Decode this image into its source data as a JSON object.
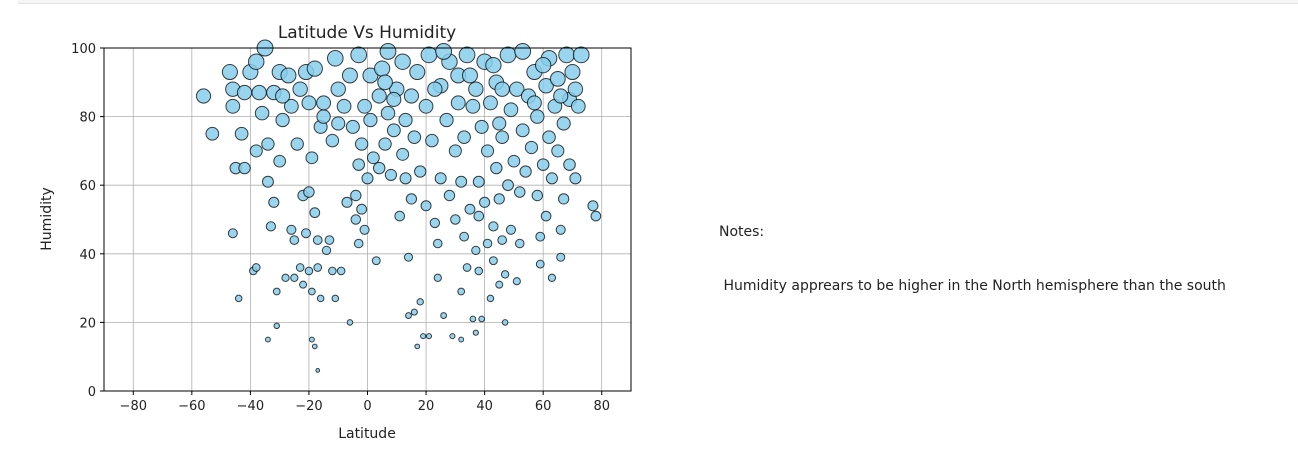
{
  "chart_data": {
    "type": "scatter",
    "title": "Latitude Vs Humidity",
    "xlabel": "Latitude",
    "ylabel": "Humidity",
    "xlim": [
      -90,
      90
    ],
    "ylim": [
      0,
      100
    ],
    "xticks": [
      -80,
      -60,
      -40,
      -20,
      0,
      20,
      40,
      60,
      80
    ],
    "yticks": [
      0,
      20,
      40,
      60,
      80,
      100
    ],
    "grid": true,
    "marker_color": "#87ceeb",
    "marker_edge_color": "#000000",
    "points": [
      {
        "x": -56,
        "y": 86
      },
      {
        "x": -53,
        "y": 75
      },
      {
        "x": -47,
        "y": 93
      },
      {
        "x": -46,
        "y": 88
      },
      {
        "x": -46,
        "y": 83
      },
      {
        "x": -45,
        "y": 65
      },
      {
        "x": -46,
        "y": 46
      },
      {
        "x": -44,
        "y": 27
      },
      {
        "x": -43,
        "y": 75
      },
      {
        "x": -42,
        "y": 65
      },
      {
        "x": -42,
        "y": 87
      },
      {
        "x": -40,
        "y": 93
      },
      {
        "x": -39,
        "y": 35
      },
      {
        "x": -38,
        "y": 36
      },
      {
        "x": -38,
        "y": 70
      },
      {
        "x": -37,
        "y": 87
      },
      {
        "x": -36,
        "y": 81
      },
      {
        "x": -35,
        "y": 100
      },
      {
        "x": -34,
        "y": 72
      },
      {
        "x": -34,
        "y": 61
      },
      {
        "x": -33,
        "y": 48
      },
      {
        "x": -34,
        "y": 15
      },
      {
        "x": -32,
        "y": 55
      },
      {
        "x": -32,
        "y": 87
      },
      {
        "x": -31,
        "y": 19
      },
      {
        "x": -31,
        "y": 29
      },
      {
        "x": -30,
        "y": 67
      },
      {
        "x": -30,
        "y": 93
      },
      {
        "x": -29,
        "y": 79
      },
      {
        "x": -28,
        "y": 33
      },
      {
        "x": -27,
        "y": 92
      },
      {
        "x": -26,
        "y": 83
      },
      {
        "x": -26,
        "y": 47
      },
      {
        "x": -25,
        "y": 44
      },
      {
        "x": -25,
        "y": 33
      },
      {
        "x": -24,
        "y": 72
      },
      {
        "x": -23,
        "y": 88
      },
      {
        "x": -23,
        "y": 36
      },
      {
        "x": -22,
        "y": 31
      },
      {
        "x": -22,
        "y": 57
      },
      {
        "x": -21,
        "y": 46
      },
      {
        "x": -21,
        "y": 93
      },
      {
        "x": -20,
        "y": 35
      },
      {
        "x": -20,
        "y": 58
      },
      {
        "x": -20,
        "y": 84
      },
      {
        "x": -19,
        "y": 29
      },
      {
        "x": -19,
        "y": 15
      },
      {
        "x": -19,
        "y": 68
      },
      {
        "x": -18,
        "y": 94
      },
      {
        "x": -18,
        "y": 13
      },
      {
        "x": -18,
        "y": 52
      },
      {
        "x": -17,
        "y": 44
      },
      {
        "x": -17,
        "y": 6
      },
      {
        "x": -17,
        "y": 36
      },
      {
        "x": -16,
        "y": 27
      },
      {
        "x": -16,
        "y": 77
      },
      {
        "x": -15,
        "y": 80
      },
      {
        "x": -14,
        "y": 41
      },
      {
        "x": -13,
        "y": 44
      },
      {
        "x": -12,
        "y": 35
      },
      {
        "x": -12,
        "y": 73
      },
      {
        "x": -11,
        "y": 27
      },
      {
        "x": -10,
        "y": 78
      },
      {
        "x": -10,
        "y": 88
      },
      {
        "x": -9,
        "y": 35
      },
      {
        "x": -8,
        "y": 83
      },
      {
        "x": -7,
        "y": 55
      },
      {
        "x": -6,
        "y": 20
      },
      {
        "x": -6,
        "y": 92
      },
      {
        "x": -5,
        "y": 77
      },
      {
        "x": -4,
        "y": 50
      },
      {
        "x": -4,
        "y": 57
      },
      {
        "x": -3,
        "y": 66
      },
      {
        "x": -3,
        "y": 43
      },
      {
        "x": -3,
        "y": 98
      },
      {
        "x": -2,
        "y": 53
      },
      {
        "x": -2,
        "y": 72
      },
      {
        "x": -1,
        "y": 47
      },
      {
        "x": -1,
        "y": 83
      },
      {
        "x": 0,
        "y": 62
      },
      {
        "x": 1,
        "y": 79
      },
      {
        "x": 1,
        "y": 92
      },
      {
        "x": 2,
        "y": 68
      },
      {
        "x": 3,
        "y": 38
      },
      {
        "x": 4,
        "y": 65
      },
      {
        "x": 4,
        "y": 86
      },
      {
        "x": 5,
        "y": 94
      },
      {
        "x": 6,
        "y": 72
      },
      {
        "x": 7,
        "y": 99
      },
      {
        "x": 7,
        "y": 81
      },
      {
        "x": 8,
        "y": 63
      },
      {
        "x": 9,
        "y": 76
      },
      {
        "x": 10,
        "y": 88
      },
      {
        "x": 11,
        "y": 51
      },
      {
        "x": 12,
        "y": 69
      },
      {
        "x": 12,
        "y": 96
      },
      {
        "x": 13,
        "y": 62
      },
      {
        "x": 13,
        "y": 79
      },
      {
        "x": 14,
        "y": 22
      },
      {
        "x": 14,
        "y": 39
      },
      {
        "x": 15,
        "y": 86
      },
      {
        "x": 15,
        "y": 56
      },
      {
        "x": 16,
        "y": 74
      },
      {
        "x": 16,
        "y": 23
      },
      {
        "x": 17,
        "y": 93
      },
      {
        "x": 17,
        "y": 13
      },
      {
        "x": 18,
        "y": 64
      },
      {
        "x": 18,
        "y": 26
      },
      {
        "x": 19,
        "y": 16
      },
      {
        "x": 20,
        "y": 83
      },
      {
        "x": 20,
        "y": 54
      },
      {
        "x": 21,
        "y": 16
      },
      {
        "x": 21,
        "y": 98
      },
      {
        "x": 22,
        "y": 73
      },
      {
        "x": 23,
        "y": 49
      },
      {
        "x": 24,
        "y": 33
      },
      {
        "x": 24,
        "y": 43
      },
      {
        "x": 25,
        "y": 89
      },
      {
        "x": 25,
        "y": 62
      },
      {
        "x": 26,
        "y": 22
      },
      {
        "x": 27,
        "y": 79
      },
      {
        "x": 28,
        "y": 96
      },
      {
        "x": 28,
        "y": 57
      },
      {
        "x": 29,
        "y": 16
      },
      {
        "x": 30,
        "y": 70
      },
      {
        "x": 30,
        "y": 50
      },
      {
        "x": 31,
        "y": 92
      },
      {
        "x": 31,
        "y": 84
      },
      {
        "x": 32,
        "y": 61
      },
      {
        "x": 32,
        "y": 15
      },
      {
        "x": 32,
        "y": 29
      },
      {
        "x": 33,
        "y": 45
      },
      {
        "x": 33,
        "y": 74
      },
      {
        "x": 34,
        "y": 98
      },
      {
        "x": 34,
        "y": 36
      },
      {
        "x": 35,
        "y": 53
      },
      {
        "x": 36,
        "y": 83
      },
      {
        "x": 36,
        "y": 21
      },
      {
        "x": 37,
        "y": 88
      },
      {
        "x": 37,
        "y": 17
      },
      {
        "x": 37,
        "y": 41
      },
      {
        "x": 38,
        "y": 61
      },
      {
        "x": 38,
        "y": 35
      },
      {
        "x": 39,
        "y": 77
      },
      {
        "x": 39,
        "y": 21
      },
      {
        "x": 40,
        "y": 96
      },
      {
        "x": 40,
        "y": 55
      },
      {
        "x": 41,
        "y": 43
      },
      {
        "x": 41,
        "y": 70
      },
      {
        "x": 42,
        "y": 27
      },
      {
        "x": 42,
        "y": 84
      },
      {
        "x": 43,
        "y": 48
      },
      {
        "x": 43,
        "y": 38
      },
      {
        "x": 44,
        "y": 65
      },
      {
        "x": 44,
        "y": 90
      },
      {
        "x": 45,
        "y": 56
      },
      {
        "x": 45,
        "y": 31
      },
      {
        "x": 46,
        "y": 74
      },
      {
        "x": 46,
        "y": 44
      },
      {
        "x": 47,
        "y": 34
      },
      {
        "x": 47,
        "y": 20
      },
      {
        "x": 48,
        "y": 60
      },
      {
        "x": 48,
        "y": 98
      },
      {
        "x": 49,
        "y": 82
      },
      {
        "x": 49,
        "y": 47
      },
      {
        "x": 50,
        "y": 67
      },
      {
        "x": 51,
        "y": 32
      },
      {
        "x": 51,
        "y": 88
      },
      {
        "x": 52,
        "y": 43
      },
      {
        "x": 52,
        "y": 58
      },
      {
        "x": 53,
        "y": 76
      },
      {
        "x": 53,
        "y": 99
      },
      {
        "x": 54,
        "y": 64
      },
      {
        "x": 55,
        "y": 86
      },
      {
        "x": 56,
        "y": 71
      },
      {
        "x": 57,
        "y": 93
      },
      {
        "x": 58,
        "y": 57
      },
      {
        "x": 58,
        "y": 80
      },
      {
        "x": 59,
        "y": 45
      },
      {
        "x": 59,
        "y": 37
      },
      {
        "x": 60,
        "y": 66
      },
      {
        "x": 61,
        "y": 51
      },
      {
        "x": 61,
        "y": 89
      },
      {
        "x": 62,
        "y": 74
      },
      {
        "x": 62,
        "y": 97
      },
      {
        "x": 63,
        "y": 33
      },
      {
        "x": 63,
        "y": 62
      },
      {
        "x": 64,
        "y": 83
      },
      {
        "x": 65,
        "y": 70
      },
      {
        "x": 65,
        "y": 91
      },
      {
        "x": 66,
        "y": 39
      },
      {
        "x": 66,
        "y": 47
      },
      {
        "x": 67,
        "y": 56
      },
      {
        "x": 67,
        "y": 78
      },
      {
        "x": 68,
        "y": 98
      },
      {
        "x": 69,
        "y": 66
      },
      {
        "x": 69,
        "y": 85
      },
      {
        "x": 70,
        "y": 93
      },
      {
        "x": 71,
        "y": 62
      },
      {
        "x": 71,
        "y": 88
      },
      {
        "x": 72,
        "y": 83
      },
      {
        "x": 73,
        "y": 98
      },
      {
        "x": 77,
        "y": 54
      },
      {
        "x": 78,
        "y": 51
      },
      {
        "x": -38,
        "y": 96
      },
      {
        "x": -29,
        "y": 86
      },
      {
        "x": -15,
        "y": 84
      },
      {
        "x": -11,
        "y": 97
      },
      {
        "x": 6,
        "y": 90
      },
      {
        "x": 9,
        "y": 85
      },
      {
        "x": 23,
        "y": 88
      },
      {
        "x": 26,
        "y": 99
      },
      {
        "x": 35,
        "y": 92
      },
      {
        "x": 43,
        "y": 95
      },
      {
        "x": 46,
        "y": 88
      },
      {
        "x": 57,
        "y": 84
      },
      {
        "x": 60,
        "y": 95
      },
      {
        "x": 66,
        "y": 86
      },
      {
        "x": 45,
        "y": 78
      },
      {
        "x": 38,
        "y": 51
      }
    ]
  },
  "notes": {
    "heading": "Notes:",
    "text": " Humidity apprears to be higher in the North hemisphere than the south"
  }
}
